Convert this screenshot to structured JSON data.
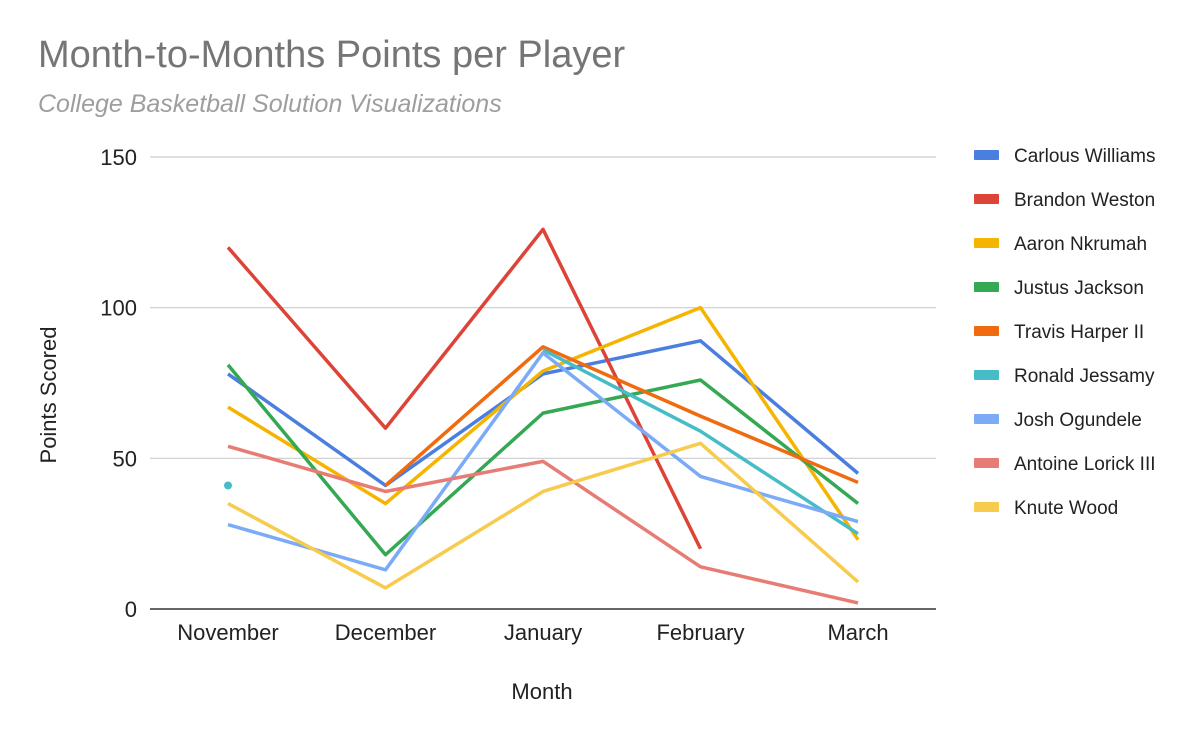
{
  "chart_data": {
    "type": "line",
    "title": "Month-to-Months Points per Player",
    "subtitle": "College Basketball Solution Visualizations",
    "xlabel": "Month",
    "ylabel": "Points Scored",
    "categories": [
      "November",
      "December",
      "January",
      "February",
      "March"
    ],
    "ylim": [
      0,
      150
    ],
    "yticks": [
      0,
      50,
      100,
      150
    ],
    "grid": true,
    "legend": "right",
    "series": [
      {
        "name": "Carlous Williams",
        "color": "#4a7fe0",
        "values": [
          78,
          41,
          78,
          89,
          45
        ]
      },
      {
        "name": "Brandon Weston",
        "color": "#dd4437",
        "values": [
          120,
          60,
          126,
          20,
          null
        ]
      },
      {
        "name": "Aaron Nkrumah",
        "color": "#f4b400",
        "values": [
          67,
          35,
          79,
          100,
          23
        ]
      },
      {
        "name": "Justus Jackson",
        "color": "#34a853",
        "values": [
          81,
          18,
          65,
          76,
          35
        ]
      },
      {
        "name": "Travis Harper II",
        "color": "#f06a0f",
        "values": [
          null,
          41,
          87,
          64,
          42
        ]
      },
      {
        "name": "Ronald Jessamy",
        "color": "#46bdc6",
        "values": [
          41,
          null,
          86,
          59,
          25
        ]
      },
      {
        "name": "Josh Ogundele",
        "color": "#7baaf7",
        "values": [
          28,
          13,
          85,
          44,
          29
        ]
      },
      {
        "name": "Antoine Lorick III",
        "color": "#e67c73",
        "values": [
          54,
          39,
          49,
          14,
          2
        ]
      },
      {
        "name": "Knute Wood",
        "color": "#f7cb4d",
        "values": [
          35,
          7,
          39,
          55,
          9
        ]
      }
    ]
  }
}
